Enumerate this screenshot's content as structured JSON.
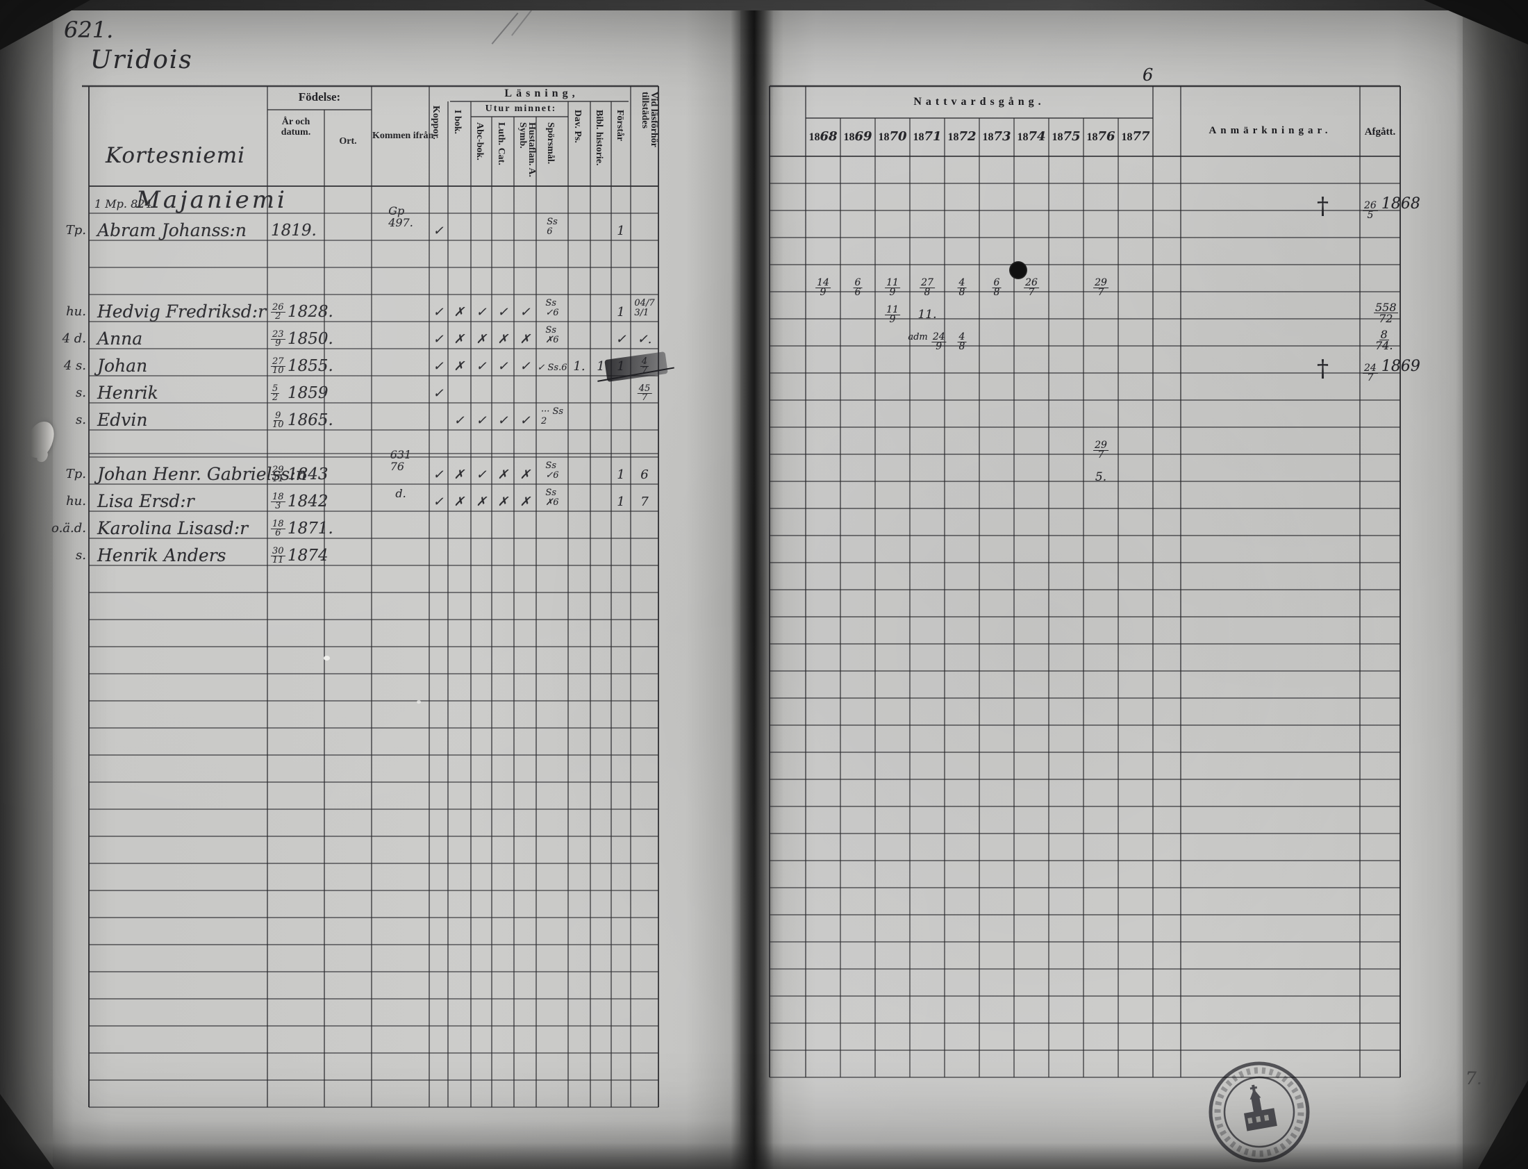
{
  "page": {
    "number": "621.",
    "village": "Uridois",
    "farm": "Kortesniemi",
    "group_no": "1 Mp. 824",
    "group_name": "Majaniemi",
    "year_note": "6",
    "margin_marks": [
      "7."
    ]
  },
  "headers": {
    "fodelse": "Födelse:",
    "ar": "År och datum.",
    "ort": "Ort.",
    "kommen": "Kommen ifrån",
    "lasning": "Läsning,",
    "utur": "Utur minnet:",
    "koppor": "Koppor.",
    "ibok": "I bok.",
    "abc": "Abc-bok.",
    "luth": "Luth. Cat.",
    "hustaflan": "Hustaflan. A. Symb.",
    "sporsmal": "Spörsmål.",
    "davps": "Dav. Ps.",
    "bibl": "Bibl. historie.",
    "forstar": "Förstår",
    "vid": "Vid läsförhör tillstädes",
    "nattvard": "Nattvardsgång.",
    "anmarkningar": "Anmärkningar.",
    "afgatt": "Afgått.",
    "years": [
      "1868",
      "1869",
      "1870",
      "1871",
      "1872",
      "1873",
      "1874",
      "1875",
      "1876",
      "1877"
    ]
  },
  "members": [
    {
      "line": 2,
      "margin": "Tp.",
      "name": "Abram Johanss:n",
      "born_day": "",
      "born_year": "1819.",
      "kommen": [
        "Gp",
        "497."
      ],
      "marks": {
        "koppor": "✓",
        "sporsmal": [
          "Ss",
          "6"
        ],
        "forstar": "1"
      },
      "communion": {},
      "anm": "†",
      "afgatt": "26/5 1868"
    },
    {
      "line": 5,
      "margin": "hu.",
      "name": "Hedvig Fredriksd:r",
      "born_day": "26/2",
      "born_year": "1828.",
      "kommen": [],
      "marks": {
        "koppor": "✓",
        "ibok": "✗",
        "abc": "✓",
        "luth": "✓",
        "hustaflan": "✓",
        "sporsmal": [
          "Ss",
          "✓6"
        ],
        "forstar": "1",
        "vid": [
          "04/7",
          "3/1"
        ]
      },
      "communion": {
        "1868": "14/9",
        "1869": "6/6",
        "1870": "11/9",
        "1871": "27/8",
        "1872": "4/8",
        "1873": "6/8",
        "1874": "26/7",
        "1876": "29/7"
      },
      "anm": "",
      "afgatt": ""
    },
    {
      "line": 6,
      "margin": "4 d.",
      "name": "Anna",
      "born_day": "23/9",
      "born_year": "1850.",
      "kommen": [],
      "marks": {
        "koppor": "✓",
        "ibok": "✗",
        "abc": "✗",
        "luth": "✗",
        "hustaflan": "✗",
        "sporsmal": [
          "Ss",
          "✗6"
        ],
        "forstar": "✓",
        "vid": "✓."
      },
      "communion": {
        "1870": "11/9",
        "1871": "11."
      },
      "anm": "",
      "afgatt": "558/72"
    },
    {
      "line": 7,
      "margin": "4 s.",
      "name": "Johan",
      "born_day": "27/10",
      "born_year": "1855.",
      "kommen": [],
      "marks": {
        "koppor": "✓",
        "ibok": "✗",
        "abc": "✓",
        "luth": "✓",
        "hustaflan": "✓",
        "sporsmal": [
          "✓ Ss.6"
        ],
        "davps": "1.",
        "bibl": "1",
        "forstar": "1",
        "vid": "4/7"
      },
      "communion": {
        "1871": "adm 24/9",
        "1872": "4/8"
      },
      "anm": "",
      "afgatt": "8/74."
    },
    {
      "line": 8,
      "margin": "s.",
      "name": "Henrik",
      "born_day": "5/2",
      "born_year": "1859",
      "kommen": [],
      "marks": {
        "koppor": "✓",
        "vid": "45/7"
      },
      "communion": {},
      "anm": "†",
      "afgatt": "24/7 1869"
    },
    {
      "line": 9,
      "margin": "s.",
      "name": "Edvin",
      "born_day": "9/10",
      "born_year": "1865.",
      "kommen": [],
      "marks": {
        "ibok": "✓",
        "abc": "✓",
        "luth": "✓",
        "hustaflan": "✓",
        "sporsmal": [
          "··· Ss",
          "2"
        ]
      },
      "communion": {},
      "anm": "",
      "afgatt": ""
    },
    {
      "line": 11,
      "margin": "Tp.",
      "name": "Johan Henr. Gabrielss:n",
      "born_day": "29/11",
      "born_year": "1843",
      "kommen": [
        "631",
        "76"
      ],
      "marks": {
        "koppor": "✓",
        "ibok": "✗",
        "abc": "✓",
        "luth": "✗",
        "hustaflan": "✗",
        "sporsmal": [
          "Ss",
          "✓6"
        ],
        "forstar": "1",
        "vid": "6"
      },
      "communion": {
        "1876": "29/7"
      },
      "anm": "",
      "afgatt": ""
    },
    {
      "line": 12,
      "margin": "hu.",
      "name": "Lisa Ersd:r",
      "born_day": "18/3",
      "born_year": "1842",
      "kommen": [
        "d."
      ],
      "marks": {
        "koppor": "✓",
        "ibok": "✗",
        "abc": "✗",
        "luth": "✗",
        "hustaflan": "✗",
        "sporsmal": [
          "Ss",
          "✗6"
        ],
        "forstar": "1",
        "vid": "7"
      },
      "communion": {
        "1876": "5."
      },
      "anm": "",
      "afgatt": ""
    },
    {
      "line": 13,
      "margin": "o.ä.d.",
      "name": "Karolina Lisasd:r",
      "born_day": "18/6",
      "born_year": "1871.",
      "kommen": [],
      "marks": {},
      "communion": {},
      "anm": "",
      "afgatt": ""
    },
    {
      "line": 14,
      "margin": "s.",
      "name": "Henrik Anders",
      "born_day": "30/11",
      "born_year": "1874",
      "kommen": [],
      "marks": {},
      "communion": {},
      "anm": "",
      "afgatt": ""
    }
  ]
}
